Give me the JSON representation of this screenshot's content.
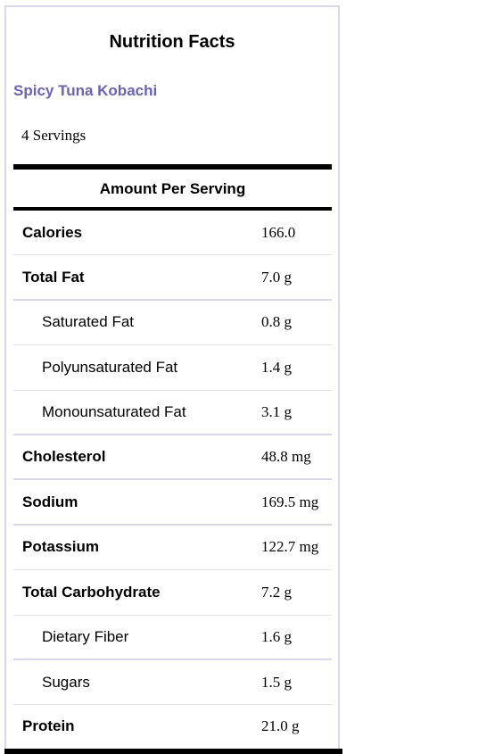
{
  "label": {
    "title": "Nutrition Facts",
    "recipe_name": "Spicy Tuna Kobachi",
    "servings": "4 Servings",
    "amount_header": "Amount Per Serving"
  },
  "nutrients": [
    {
      "name": "Calories",
      "value": "166.0",
      "level": "main"
    },
    {
      "name": "Total Fat",
      "value": "7.0 g",
      "level": "main"
    },
    {
      "name": "Saturated Fat",
      "value": "0.8 g",
      "level": "sub"
    },
    {
      "name": "Polyunsaturated Fat",
      "value": "1.4 g",
      "level": "sub"
    },
    {
      "name": "Monounsaturated Fat",
      "value": "3.1 g",
      "level": "sub"
    },
    {
      "name": "Cholesterol",
      "value": "48.8 mg",
      "level": "main"
    },
    {
      "name": "Sodium",
      "value": "169.5 mg",
      "level": "main"
    },
    {
      "name": "Potassium",
      "value": "122.7 mg",
      "level": "main"
    },
    {
      "name": "Total Carbohydrate",
      "value": "7.2 g",
      "level": "main"
    },
    {
      "name": "Dietary Fiber",
      "value": "1.6 g",
      "level": "sub"
    },
    {
      "name": "Sugars",
      "value": "1.5 g",
      "level": "sub"
    },
    {
      "name": "Protein",
      "value": "21.0 g",
      "level": "main"
    }
  ],
  "colors": {
    "recipe_name": "#6a63b8",
    "panel_border": "#d8d6f2",
    "rule": "#000000"
  }
}
